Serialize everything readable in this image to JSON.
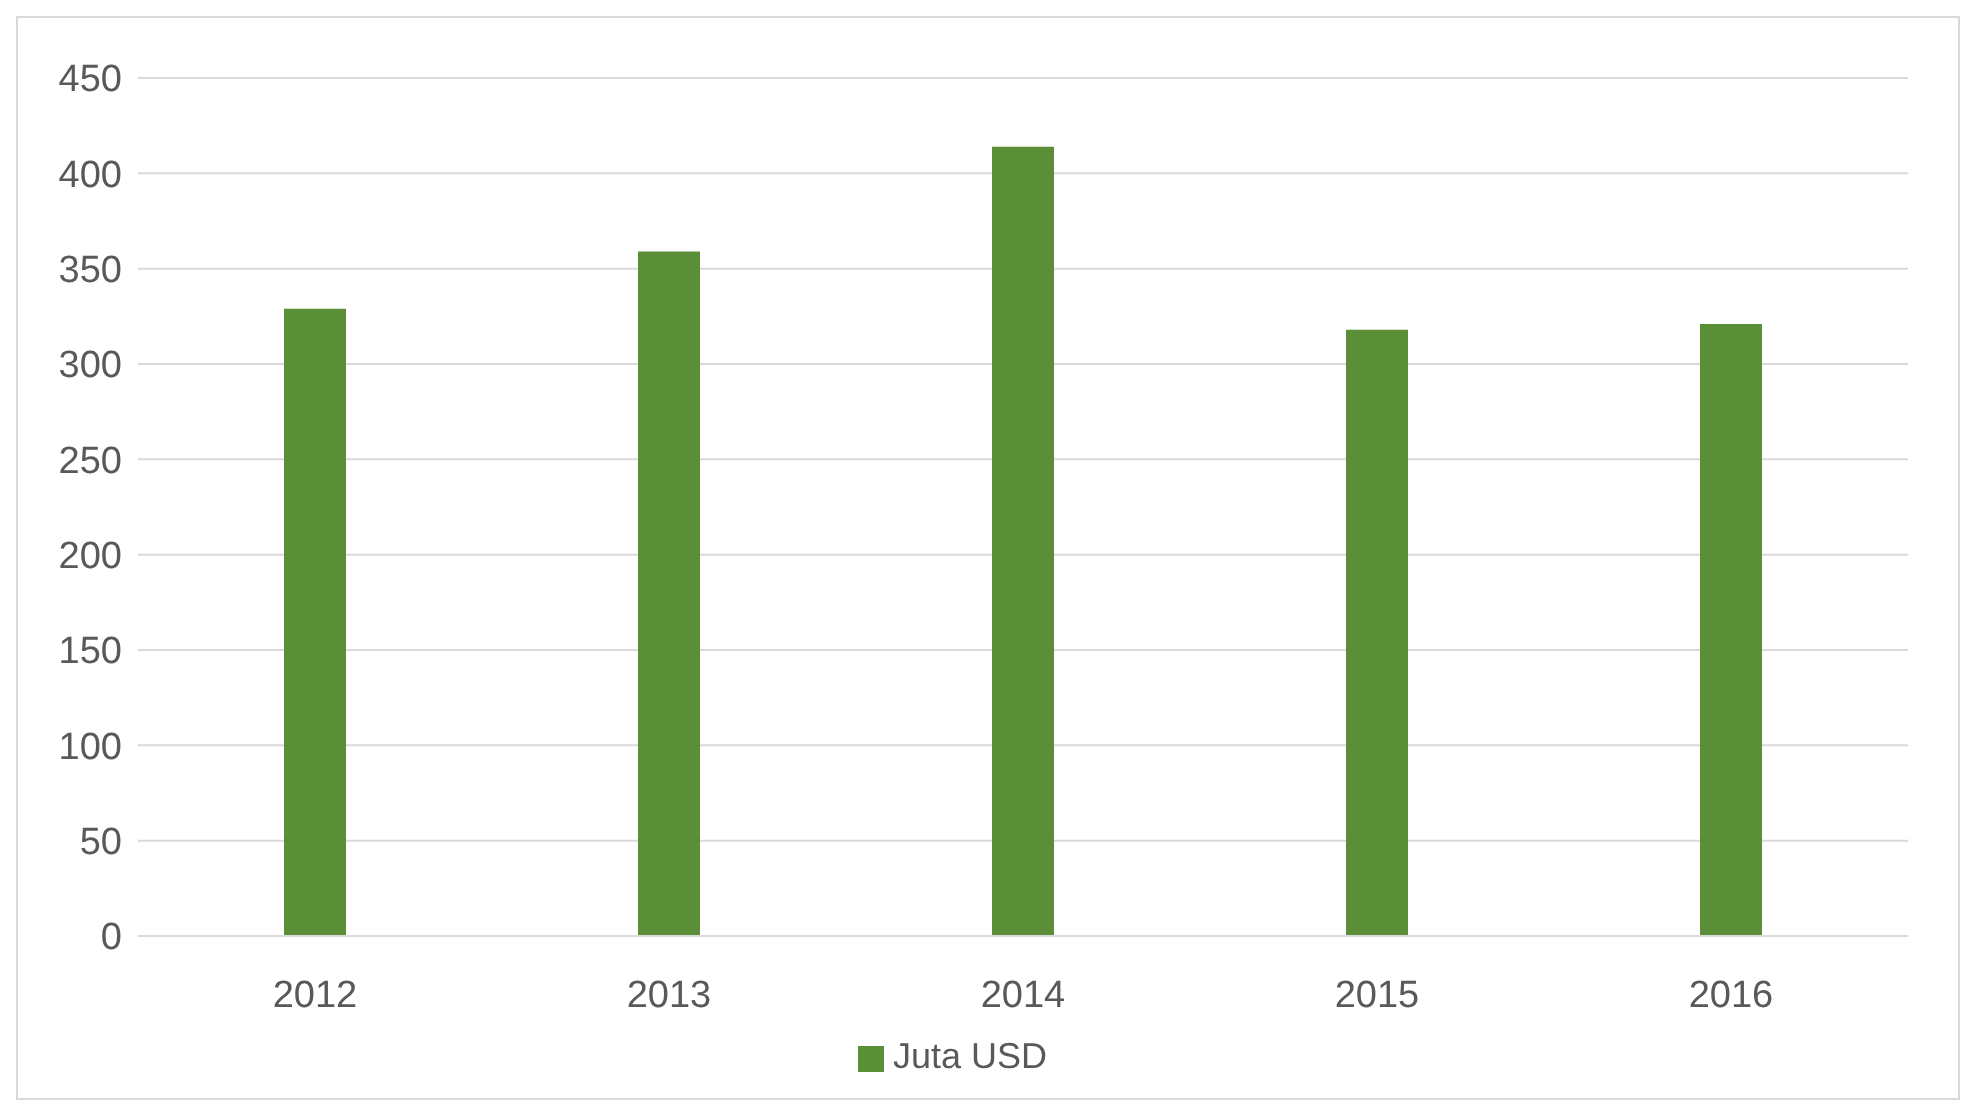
{
  "chart_data": {
    "type": "bar",
    "categories": [
      "2012",
      "2013",
      "2014",
      "2015",
      "2016"
    ],
    "series": [
      {
        "name": "Juta USD",
        "color": "#5b8f37",
        "values": [
          329,
          359,
          414,
          318,
          321
        ]
      }
    ],
    "ylim": [
      0,
      450
    ],
    "yticks": [
      0,
      50,
      100,
      150,
      200,
      250,
      300,
      350,
      400,
      450
    ],
    "grid": "y",
    "legend": "bottom"
  }
}
